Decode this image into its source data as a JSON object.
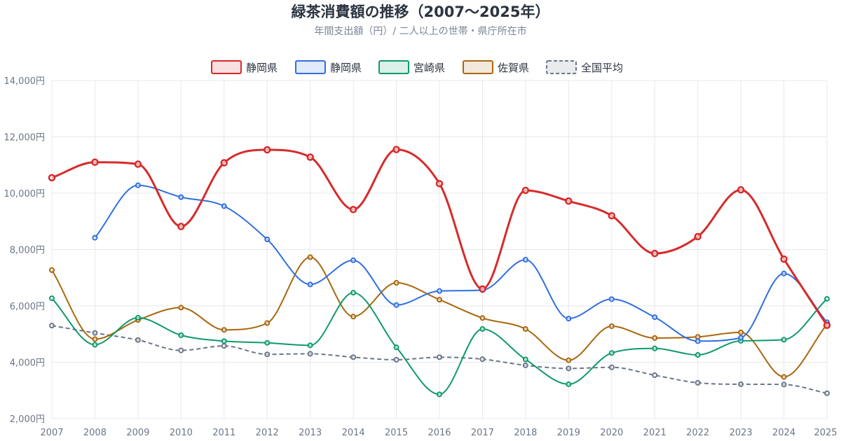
{
  "chart_data": {
    "type": "line",
    "title": "緑茶消費額の推移（2007〜2025年）",
    "subtitle": "年間支出額（円）/ 二人以上の世帯・県庁所在市",
    "xlabel": "",
    "ylabel": "",
    "ylim": [
      2000,
      14000
    ],
    "y_ticks": [
      "2,000円",
      "4,000円",
      "6,000円",
      "8,000円",
      "10,000円",
      "12,000円",
      "14,000円"
    ],
    "y_tick_values": [
      2000,
      4000,
      6000,
      8000,
      10000,
      12000,
      14000
    ],
    "categories": [
      "2007",
      "2008",
      "2009",
      "2010",
      "2011",
      "2012",
      "2013",
      "2014",
      "2015",
      "2016",
      "2017",
      "2018",
      "2019",
      "2020",
      "2021",
      "2022",
      "2023",
      "2024",
      "2025"
    ],
    "legend_position": "top",
    "grid": true,
    "series": [
      {
        "name": "静岡県",
        "color": "#d62b2b",
        "dashed": false,
        "bold": true,
        "values": [
          10550,
          11100,
          11030,
          8820,
          11080,
          11540,
          11280,
          9420,
          11550,
          10340,
          6600,
          10100,
          9720,
          9200,
          7860,
          8460,
          10120,
          7660,
          5310
        ]
      },
      {
        "name": "静岡県",
        "color": "#2f6fe0",
        "dashed": false,
        "bold": false,
        "values": [
          null,
          8420,
          10280,
          9860,
          9540,
          8360,
          6760,
          7620,
          6030,
          6530,
          6560,
          7640,
          5550,
          6240,
          5600,
          4750,
          4870,
          7150,
          5420
        ]
      },
      {
        "name": "宮崎県",
        "color": "#0f9a6a",
        "dashed": false,
        "bold": false,
        "values": [
          6270,
          4620,
          5580,
          4960,
          4750,
          4690,
          4600,
          6470,
          4530,
          2860,
          5180,
          4100,
          3220,
          4330,
          4490,
          4260,
          4760,
          4800,
          6250
        ]
      },
      {
        "name": "佐賀県",
        "color": "#a8670e",
        "dashed": false,
        "bold": false,
        "values": [
          7270,
          4820,
          5500,
          5940,
          5150,
          5390,
          7730,
          5620,
          6820,
          6220,
          5570,
          5180,
          4070,
          5280,
          4860,
          4900,
          5060,
          3480,
          5350
        ]
      },
      {
        "name": "全国平均",
        "color": "#6b7689",
        "dashed": true,
        "bold": false,
        "values": [
          5300,
          5040,
          4790,
          4420,
          4580,
          4280,
          4300,
          4180,
          4090,
          4180,
          4110,
          3890,
          3780,
          3820,
          3540,
          3270,
          3220,
          3210,
          2900
        ]
      }
    ]
  }
}
